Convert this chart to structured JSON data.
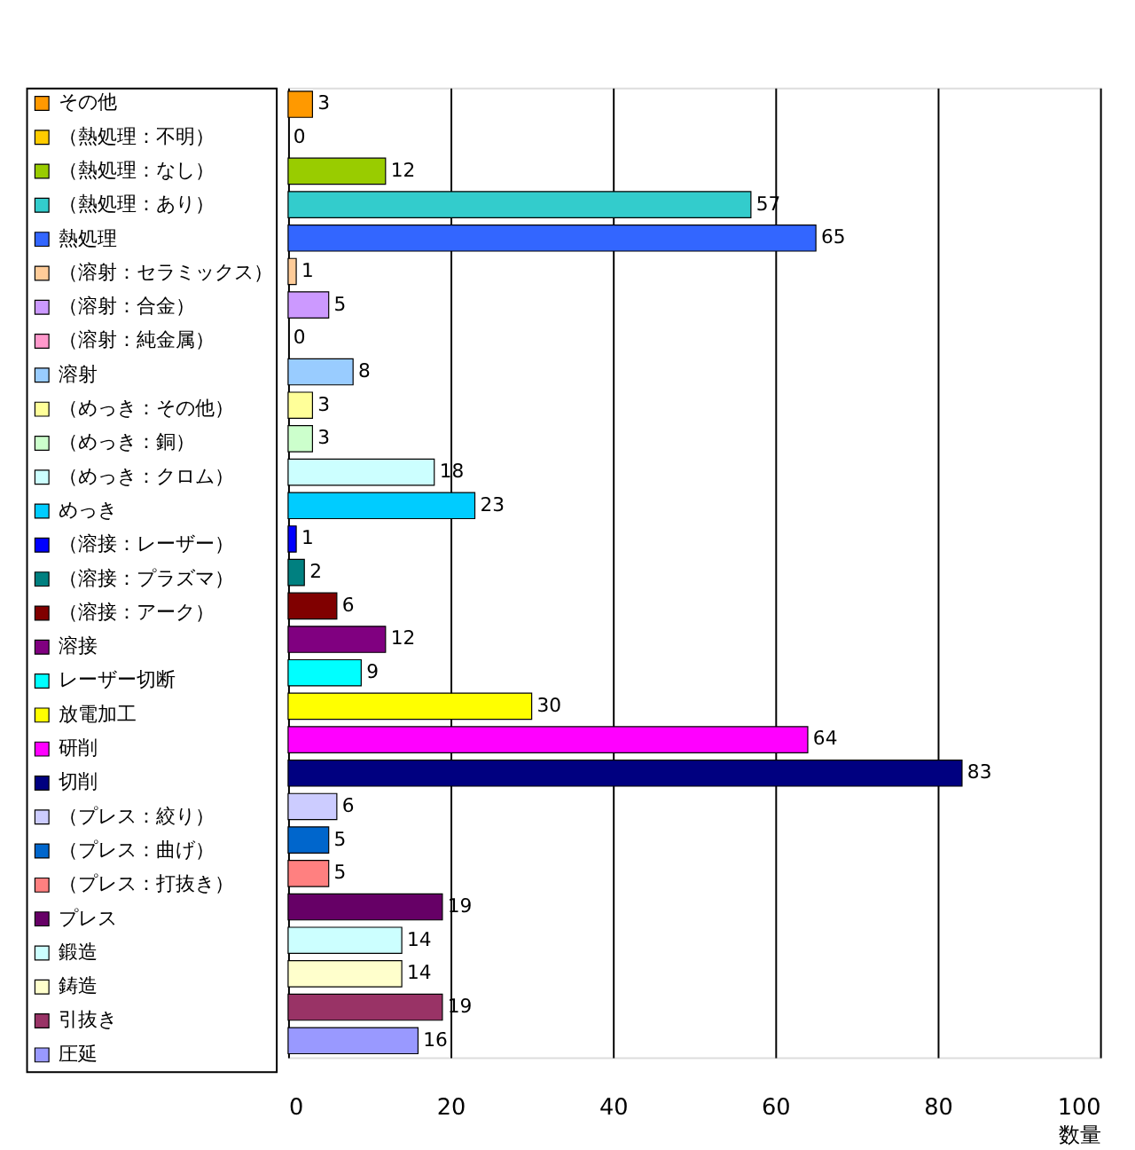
{
  "chart_data": {
    "type": "bar",
    "orientation": "horizontal",
    "xlabel": "数量",
    "categories": [
      null,
      null,
      null,
      null,
      null,
      null,
      null,
      null,
      null,
      null,
      null,
      null,
      null,
      null,
      null,
      null,
      null,
      null,
      null,
      null,
      null,
      null,
      null,
      null,
      null,
      null,
      null,
      null,
      null
    ],
    "series": [
      {
        "name": "その他",
        "color": "#ff9900",
        "values": [
          3,
          null,
          null,
          null,
          null,
          null,
          null,
          null,
          null,
          null,
          null,
          null,
          null,
          null,
          null,
          null,
          null,
          null,
          null,
          null,
          null,
          null,
          null,
          null,
          null,
          null,
          null,
          null,
          null
        ]
      },
      {
        "name": "（熱処理：不明）",
        "color": "#ffcc00",
        "values": [
          null,
          0,
          null,
          null,
          null,
          null,
          null,
          null,
          null,
          null,
          null,
          null,
          null,
          null,
          null,
          null,
          null,
          null,
          null,
          null,
          null,
          null,
          null,
          null,
          null,
          null,
          null,
          null,
          null
        ]
      },
      {
        "name": "（熱処理：なし）",
        "color": "#99cc00",
        "values": [
          null,
          null,
          12,
          null,
          null,
          null,
          null,
          null,
          null,
          null,
          null,
          null,
          null,
          null,
          null,
          null,
          null,
          null,
          null,
          null,
          null,
          null,
          null,
          null,
          null,
          null,
          null,
          null,
          null
        ]
      },
      {
        "name": "（熱処理：あり）",
        "color": "#33cccc",
        "values": [
          null,
          null,
          null,
          57,
          null,
          null,
          null,
          null,
          null,
          null,
          null,
          null,
          null,
          null,
          null,
          null,
          null,
          null,
          null,
          null,
          null,
          null,
          null,
          null,
          null,
          null,
          null,
          null,
          null
        ]
      },
      {
        "name": "熱処理",
        "color": "#3366ff",
        "values": [
          null,
          null,
          null,
          null,
          65,
          null,
          null,
          null,
          null,
          null,
          null,
          null,
          null,
          null,
          null,
          null,
          null,
          null,
          null,
          null,
          null,
          null,
          null,
          null,
          null,
          null,
          null,
          null,
          null
        ]
      },
      {
        "name": "（溶射：セラミックス）",
        "color": "#ffcc99",
        "values": [
          null,
          null,
          null,
          null,
          null,
          1,
          null,
          null,
          null,
          null,
          null,
          null,
          null,
          null,
          null,
          null,
          null,
          null,
          null,
          null,
          null,
          null,
          null,
          null,
          null,
          null,
          null,
          null,
          null
        ]
      },
      {
        "name": "（溶射：合金）",
        "color": "#cc99ff",
        "values": [
          null,
          null,
          null,
          null,
          null,
          null,
          5,
          null,
          null,
          null,
          null,
          null,
          null,
          null,
          null,
          null,
          null,
          null,
          null,
          null,
          null,
          null,
          null,
          null,
          null,
          null,
          null,
          null,
          null
        ]
      },
      {
        "name": "（溶射：純金属）",
        "color": "#ff99cc",
        "values": [
          null,
          null,
          null,
          null,
          null,
          null,
          null,
          0,
          null,
          null,
          null,
          null,
          null,
          null,
          null,
          null,
          null,
          null,
          null,
          null,
          null,
          null,
          null,
          null,
          null,
          null,
          null,
          null,
          null
        ]
      },
      {
        "name": "溶射",
        "color": "#99ccff",
        "values": [
          null,
          null,
          null,
          null,
          null,
          null,
          null,
          null,
          8,
          null,
          null,
          null,
          null,
          null,
          null,
          null,
          null,
          null,
          null,
          null,
          null,
          null,
          null,
          null,
          null,
          null,
          null,
          null,
          null
        ]
      },
      {
        "name": "（めっき：その他）",
        "color": "#ffff99",
        "values": [
          null,
          null,
          null,
          null,
          null,
          null,
          null,
          null,
          null,
          3,
          null,
          null,
          null,
          null,
          null,
          null,
          null,
          null,
          null,
          null,
          null,
          null,
          null,
          null,
          null,
          null,
          null,
          null,
          null
        ]
      },
      {
        "name": "（めっき：銅）",
        "color": "#ccffcc",
        "values": [
          null,
          null,
          null,
          null,
          null,
          null,
          null,
          null,
          null,
          null,
          3,
          null,
          null,
          null,
          null,
          null,
          null,
          null,
          null,
          null,
          null,
          null,
          null,
          null,
          null,
          null,
          null,
          null,
          null
        ]
      },
      {
        "name": "（めっき：クロム）",
        "color": "#ccffff",
        "values": [
          null,
          null,
          null,
          null,
          null,
          null,
          null,
          null,
          null,
          null,
          null,
          18,
          null,
          null,
          null,
          null,
          null,
          null,
          null,
          null,
          null,
          null,
          null,
          null,
          null,
          null,
          null,
          null,
          null
        ]
      },
      {
        "name": "めっき",
        "color": "#00ccff",
        "values": [
          null,
          null,
          null,
          null,
          null,
          null,
          null,
          null,
          null,
          null,
          null,
          null,
          23,
          null,
          null,
          null,
          null,
          null,
          null,
          null,
          null,
          null,
          null,
          null,
          null,
          null,
          null,
          null,
          null
        ]
      },
      {
        "name": "（溶接：レーザー）",
        "color": "#0000ff",
        "values": [
          null,
          null,
          null,
          null,
          null,
          null,
          null,
          null,
          null,
          null,
          null,
          null,
          null,
          1,
          null,
          null,
          null,
          null,
          null,
          null,
          null,
          null,
          null,
          null,
          null,
          null,
          null,
          null,
          null
        ]
      },
      {
        "name": "（溶接：プラズマ）",
        "color": "#008080",
        "values": [
          null,
          null,
          null,
          null,
          null,
          null,
          null,
          null,
          null,
          null,
          null,
          null,
          null,
          null,
          2,
          null,
          null,
          null,
          null,
          null,
          null,
          null,
          null,
          null,
          null,
          null,
          null,
          null,
          null
        ]
      },
      {
        "name": "（溶接：アーク）",
        "color": "#800000",
        "values": [
          null,
          null,
          null,
          null,
          null,
          null,
          null,
          null,
          null,
          null,
          null,
          null,
          null,
          null,
          null,
          6,
          null,
          null,
          null,
          null,
          null,
          null,
          null,
          null,
          null,
          null,
          null,
          null,
          null
        ]
      },
      {
        "name": "溶接",
        "color": "#800080",
        "values": [
          null,
          null,
          null,
          null,
          null,
          null,
          null,
          null,
          null,
          null,
          null,
          null,
          null,
          null,
          null,
          null,
          12,
          null,
          null,
          null,
          null,
          null,
          null,
          null,
          null,
          null,
          null,
          null,
          null
        ]
      },
      {
        "name": "レーザー切断",
        "color": "#00ffff",
        "values": [
          null,
          null,
          null,
          null,
          null,
          null,
          null,
          null,
          null,
          null,
          null,
          null,
          null,
          null,
          null,
          null,
          null,
          9,
          null,
          null,
          null,
          null,
          null,
          null,
          null,
          null,
          null,
          null,
          null
        ]
      },
      {
        "name": "放電加工",
        "color": "#ffff00",
        "values": [
          null,
          null,
          null,
          null,
          null,
          null,
          null,
          null,
          null,
          null,
          null,
          null,
          null,
          null,
          null,
          null,
          null,
          null,
          30,
          null,
          null,
          null,
          null,
          null,
          null,
          null,
          null,
          null,
          null
        ]
      },
      {
        "name": "研削",
        "color": "#ff00ff",
        "values": [
          null,
          null,
          null,
          null,
          null,
          null,
          null,
          null,
          null,
          null,
          null,
          null,
          null,
          null,
          null,
          null,
          null,
          null,
          null,
          64,
          null,
          null,
          null,
          null,
          null,
          null,
          null,
          null,
          null
        ]
      },
      {
        "name": "切削",
        "color": "#000080",
        "values": [
          null,
          null,
          null,
          null,
          null,
          null,
          null,
          null,
          null,
          null,
          null,
          null,
          null,
          null,
          null,
          null,
          null,
          null,
          null,
          null,
          83,
          null,
          null,
          null,
          null,
          null,
          null,
          null,
          null
        ]
      },
      {
        "name": "（プレス：絞り）",
        "color": "#ccccff",
        "values": [
          null,
          null,
          null,
          null,
          null,
          null,
          null,
          null,
          null,
          null,
          null,
          null,
          null,
          null,
          null,
          null,
          null,
          null,
          null,
          null,
          null,
          6,
          null,
          null,
          null,
          null,
          null,
          null,
          null
        ]
      },
      {
        "name": "（プレス：曲げ）",
        "color": "#0066cc",
        "values": [
          null,
          null,
          null,
          null,
          null,
          null,
          null,
          null,
          null,
          null,
          null,
          null,
          null,
          null,
          null,
          null,
          null,
          null,
          null,
          null,
          null,
          null,
          5,
          null,
          null,
          null,
          null,
          null,
          null
        ]
      },
      {
        "name": "（プレス：打抜き）",
        "color": "#ff8080",
        "values": [
          null,
          null,
          null,
          null,
          null,
          null,
          null,
          null,
          null,
          null,
          null,
          null,
          null,
          null,
          null,
          null,
          null,
          null,
          null,
          null,
          null,
          null,
          null,
          5,
          null,
          null,
          null,
          null,
          null
        ]
      },
      {
        "name": "プレス",
        "color": "#660066",
        "values": [
          null,
          null,
          null,
          null,
          null,
          null,
          null,
          null,
          null,
          null,
          null,
          null,
          null,
          null,
          null,
          null,
          null,
          null,
          null,
          null,
          null,
          null,
          null,
          null,
          19,
          null,
          null,
          null,
          null
        ]
      },
      {
        "name": "鍛造",
        "color": "#ccffff",
        "values": [
          null,
          null,
          null,
          null,
          null,
          null,
          null,
          null,
          null,
          null,
          null,
          null,
          null,
          null,
          null,
          null,
          null,
          null,
          null,
          null,
          null,
          null,
          null,
          null,
          null,
          14,
          null,
          null,
          null
        ]
      },
      {
        "name": "鋳造",
        "color": "#ffffcc",
        "values": [
          null,
          null,
          null,
          null,
          null,
          null,
          null,
          null,
          null,
          null,
          null,
          null,
          null,
          null,
          null,
          null,
          null,
          null,
          null,
          null,
          null,
          null,
          null,
          null,
          null,
          null,
          14,
          null,
          null
        ]
      },
      {
        "name": "引抜き",
        "color": "#993366",
        "values": [
          null,
          null,
          null,
          null,
          null,
          null,
          null,
          null,
          null,
          null,
          null,
          null,
          null,
          null,
          null,
          null,
          null,
          null,
          null,
          null,
          null,
          null,
          null,
          null,
          null,
          null,
          null,
          19,
          null
        ]
      },
      {
        "name": "圧延",
        "color": "#9999ff",
        "values": [
          null,
          null,
          null,
          null,
          null,
          null,
          null,
          null,
          null,
          null,
          null,
          null,
          null,
          null,
          null,
          null,
          null,
          null,
          null,
          null,
          null,
          null,
          null,
          null,
          null,
          null,
          null,
          null,
          16
        ]
      }
    ],
    "data_labels": true,
    "xlim": [
      0,
      100
    ],
    "xticks": [
      0,
      20,
      40,
      60,
      80,
      100
    ],
    "grid": "x",
    "legend": "left",
    "tick_labels": "x"
  }
}
